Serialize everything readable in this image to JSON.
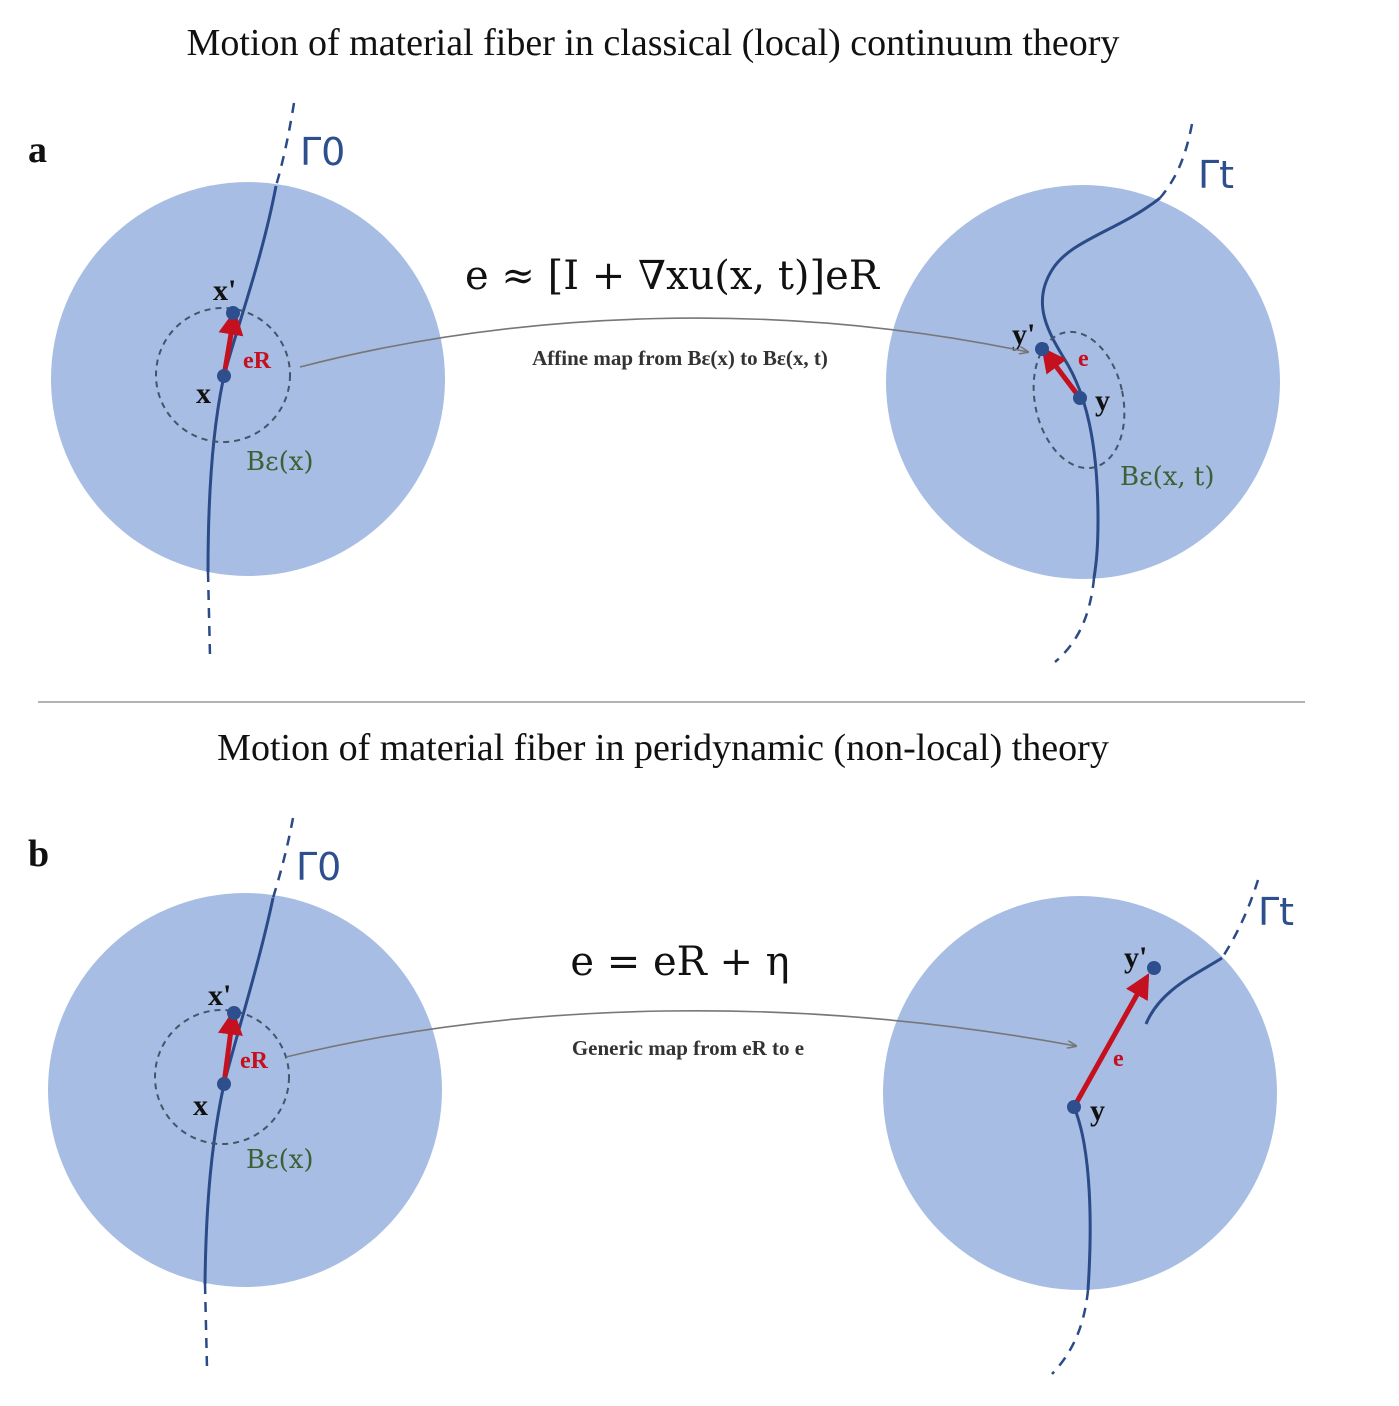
{
  "panel_a": {
    "title": "Motion of material fiber in classical (local) continuum theory",
    "label": "a",
    "gamma_left": "Γ0",
    "gamma_right": "Γt",
    "x_label": "x",
    "xprime_label": "x'",
    "eR_label": "eR",
    "ball_left_label": "Bε(x)",
    "y_label": "y",
    "yprime_label": "y'",
    "e_label": "e",
    "ball_right_label": "Bε(x, t)",
    "formula": "e ≈ [I + ∇xu(x, t)]eR",
    "map_label": "Affine map from Bε(x) to Bε(x, t)"
  },
  "panel_b": {
    "title": "Motion of material fiber in peridynamic (non-local) theory",
    "label": "b",
    "gamma_left": "Γ0",
    "gamma_right": "Γt",
    "x_label": "x",
    "xprime_label": "x'",
    "eR_label": "eR",
    "ball_left_label": "Bε(x)",
    "y_label": "y",
    "yprime_label": "y'",
    "e_label": "e",
    "formula": "e = eR + η",
    "map_label": "Generic map from eR to e"
  },
  "colors": {
    "disk": "#a7bde3",
    "fiber": "#2a4a88",
    "vector": "#c4101f",
    "ball_label": "#3f5f35"
  }
}
